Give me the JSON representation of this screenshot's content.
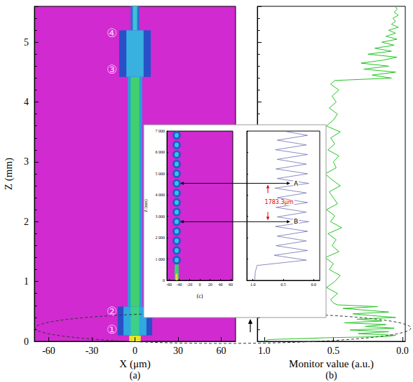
{
  "chart_data": [
    {
      "type": "heatmap",
      "title": "(a)",
      "xlabel": "X (μm)",
      "ylabel": "Z (mm)",
      "xlim": [
        -70,
        70
      ],
      "xticks": [
        -60,
        -30,
        0,
        30,
        60
      ],
      "ylim": [
        0,
        5.6
      ],
      "yticks": [
        0,
        1,
        2,
        3,
        4,
        5
      ],
      "cells": [
        [
          -4,
          4,
          0,
          0.1
        ],
        [
          -12,
          12,
          0.1,
          0.58
        ],
        [
          -8,
          8,
          0.1,
          0.58
        ],
        [
          -3,
          3,
          0.1,
          0.58
        ],
        [
          -5,
          5,
          0.58,
          4.42
        ],
        [
          -3,
          3,
          0.58,
          4.42
        ],
        [
          -11,
          11,
          4.42,
          5.2
        ],
        [
          -6,
          6,
          4.42,
          5.2
        ],
        [
          -3,
          3,
          5.2,
          5.6
        ],
        [
          -1.5,
          1.5,
          5.2,
          5.6
        ]
      ],
      "colors": [
        "#e6e628",
        "#2a4fc8",
        "#30a8e0",
        "#3cd08a",
        "#28a0d8",
        "#40d070",
        "#2850c8",
        "#38b0e0",
        "#2c70d0",
        "#40c0d8"
      ],
      "annotations": [
        {
          "text": "①",
          "x": -16,
          "y": 0.2
        },
        {
          "text": "②",
          "x": -16,
          "y": 0.5
        },
        {
          "text": "③",
          "x": -16,
          "y": 4.55
        },
        {
          "text": "④",
          "x": -16,
          "y": 5.15
        }
      ]
    },
    {
      "type": "line",
      "title": "(b)",
      "xlabel": "Monitor value (a.u.)",
      "xlim": [
        1.05,
        -0.02
      ],
      "xticks": [
        {
          "value": 1,
          "label": "1.0"
        },
        {
          "value": 0.5,
          "label": "0.5"
        },
        {
          "value": 0,
          "label": "0.0"
        }
      ],
      "ylim": [
        0,
        5.6
      ],
      "yticks": [
        0,
        1,
        2,
        3,
        4,
        5
      ],
      "tick_labels": "x",
      "color": "#21c421",
      "z": [
        0,
        0.03,
        0.06,
        0.08,
        0.1,
        0.13,
        0.16,
        0.19,
        0.22,
        0.25,
        0.28,
        0.31,
        0.34,
        0.37,
        0.4,
        0.43,
        0.46,
        0.49,
        0.52,
        0.55,
        0.58,
        0.61,
        0.64,
        0.7,
        0.8,
        0.9,
        1.0,
        1.1,
        1.2,
        1.3,
        1.4,
        1.5,
        1.6,
        1.7,
        1.8,
        1.9,
        2.0,
        2.1,
        2.2,
        2.3,
        2.4,
        2.5,
        2.6,
        2.7,
        2.8,
        2.9,
        3.0,
        3.1,
        3.2,
        3.3,
        3.4,
        3.5,
        3.6,
        3.7,
        3.8,
        3.9,
        4.0,
        4.1,
        4.2,
        4.3,
        4.36,
        4.4,
        4.45,
        4.5,
        4.55,
        4.6,
        4.65,
        4.7,
        4.75,
        4.8,
        4.85,
        4.9,
        4.95,
        5.0,
        5.05,
        5.1,
        5.15,
        5.2,
        5.25,
        5.3,
        5.35,
        5.4,
        5.45,
        5.5,
        5.55,
        5.6
      ],
      "values": [
        1.0,
        0.97,
        0.55,
        0.12,
        0.05,
        0.32,
        0.1,
        0.38,
        0.06,
        0.27,
        0.12,
        0.42,
        0.15,
        0.33,
        0.05,
        0.22,
        0.36,
        0.1,
        0.26,
        0.43,
        0.18,
        0.47,
        0.5,
        0.52,
        0.47,
        0.55,
        0.49,
        0.45,
        0.53,
        0.5,
        0.56,
        0.46,
        0.51,
        0.48,
        0.54,
        0.44,
        0.52,
        0.49,
        0.55,
        0.47,
        0.5,
        0.53,
        0.45,
        0.51,
        0.56,
        0.48,
        0.5,
        0.46,
        0.54,
        0.49,
        0.52,
        0.45,
        0.55,
        0.5,
        0.47,
        0.53,
        0.48,
        0.51,
        0.46,
        0.52,
        0.49,
        0.08,
        0.22,
        0.05,
        0.28,
        0.1,
        0.3,
        0.14,
        0.04,
        0.25,
        0.08,
        0.2,
        0.06,
        0.15,
        0.04,
        0.12,
        0.05,
        0.1,
        0.03,
        0.08,
        0.05,
        0.07,
        0.03,
        0.06,
        0.04,
        0.05
      ]
    },
    {
      "type": "heatmap",
      "title": "(c)",
      "ylabel": "Z (mm)",
      "xlim": [
        -64,
        64
      ],
      "xticks": [
        -60,
        -40,
        -20,
        0,
        20,
        40,
        60
      ],
      "ylim": [
        0,
        7000
      ],
      "yticks": [
        0,
        {
          "value": 1000,
          "label": "1 000"
        },
        {
          "value": 2000,
          "label": "2 000"
        },
        {
          "value": 3000,
          "label": "3 000"
        },
        {
          "value": 4000,
          "label": "4 000"
        },
        {
          "value": 5000,
          "label": "5 000"
        },
        {
          "value": 6000,
          "label": "6 000"
        },
        {
          "value": 7000,
          "label": "7 000"
        }
      ],
      "cells": [
        [
          -49,
          -41,
          0,
          760
        ],
        [
          -47,
          -43,
          0,
          320
        ],
        [
          -53,
          -37,
          750,
          1150
        ],
        [
          -49,
          -41,
          840,
          1060
        ],
        [
          -53,
          -37,
          1200,
          1600
        ],
        [
          -49,
          -41,
          1290,
          1510
        ],
        [
          -53,
          -37,
          1650,
          2050
        ],
        [
          -49,
          -41,
          1740,
          1960
        ],
        [
          -53,
          -37,
          2100,
          2500
        ],
        [
          -49,
          -41,
          2190,
          2410
        ],
        [
          -53,
          -37,
          2550,
          2950
        ],
        [
          -49,
          -41,
          2640,
          2860
        ],
        [
          -53,
          -37,
          3000,
          3400
        ],
        [
          -49,
          -41,
          3090,
          3310
        ],
        [
          -53,
          -37,
          3450,
          3850
        ],
        [
          -49,
          -41,
          3540,
          3760
        ],
        [
          -53,
          -37,
          3900,
          4300
        ],
        [
          -49,
          -41,
          3990,
          4210
        ],
        [
          -53,
          -37,
          4350,
          4750
        ],
        [
          -49,
          -41,
          4440,
          4660
        ],
        [
          -53,
          -37,
          4800,
          5200
        ],
        [
          -49,
          -41,
          4890,
          5110
        ],
        [
          -53,
          -37,
          5250,
          5650
        ],
        [
          -49,
          -41,
          5340,
          5560
        ],
        [
          -53,
          -37,
          5700,
          6100
        ],
        [
          -49,
          -41,
          5790,
          6010
        ],
        [
          -53,
          -37,
          6150,
          6550
        ],
        [
          -49,
          -41,
          6240,
          6460
        ],
        [
          -53,
          -37,
          6600,
          7000
        ],
        [
          -49,
          -41,
          6690,
          6910
        ]
      ],
      "colors": [
        "#38d070",
        "#e0e030",
        "#2458cc",
        "#34c4e4",
        "#2458cc",
        "#34c4e4",
        "#2458cc",
        "#34c4e4",
        "#2458cc",
        "#34c4e4",
        "#2458cc",
        "#34c4e4",
        "#2458cc",
        "#34c4e4",
        "#2458cc",
        "#34c4e4",
        "#2458cc",
        "#34c4e4",
        "#2458cc",
        "#34c4e4",
        "#2458cc",
        "#34c4e4",
        "#2458cc",
        "#34c4e4",
        "#2458cc",
        "#34c4e4",
        "#2458cc",
        "#34c4e4",
        "#2458cc",
        "#34c4e4"
      ],
      "annotations": [
        {
          "text": "A",
          "x": -45,
          "y": 4550
        },
        {
          "text": "B",
          "x": -45,
          "y": 2750
        },
        {
          "text": "1783.3μm",
          "y": 3650,
          "color": "#e00000"
        }
      ]
    },
    {
      "type": "line",
      "xlim": [
        1.1,
        -0.1
      ],
      "xticks": [
        {
          "value": 1,
          "label": "1.0"
        },
        {
          "value": 0.5,
          "label": "0.5"
        },
        {
          "value": 0,
          "label": "0.0"
        }
      ],
      "ylim": [
        0,
        7000
      ],
      "yticks": [
        0,
        1000,
        2000,
        3000,
        4000,
        5000,
        6000,
        7000
      ],
      "tick_labels": "x",
      "color": "#6e6eb4",
      "z": [
        0,
        400,
        700,
        800,
        950,
        1175,
        1400,
        1625,
        1850,
        2075,
        2300,
        2525,
        2750,
        2975,
        3200,
        3425,
        3650,
        3875,
        4100,
        4325,
        4550,
        4775,
        5000,
        5225,
        5450,
        5675,
        5900,
        6125,
        6350,
        6575,
        6800,
        7000
      ],
      "values": [
        0.97,
        0.96,
        0.93,
        0.6,
        0.12,
        0.65,
        0.1,
        0.62,
        0.12,
        0.6,
        0.1,
        0.63,
        0.08,
        0.6,
        0.12,
        0.62,
        0.1,
        0.6,
        0.12,
        0.64,
        0.08,
        0.6,
        0.1,
        0.62,
        0.12,
        0.6,
        0.1,
        0.63,
        0.12,
        0.6,
        0.1,
        0.5
      ]
    }
  ]
}
